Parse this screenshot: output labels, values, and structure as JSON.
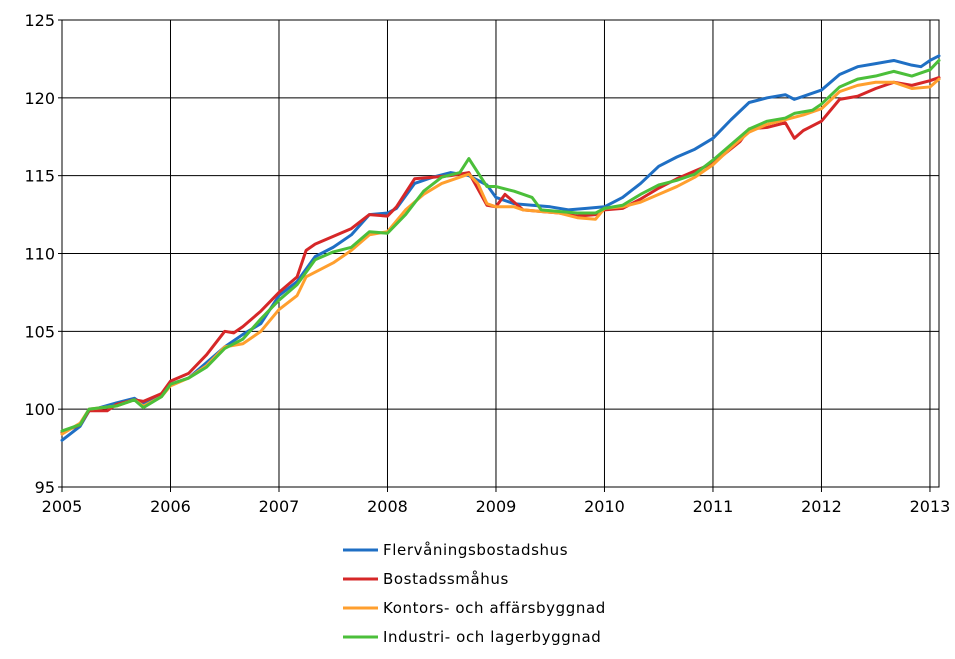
{
  "chart_data": {
    "type": "line",
    "title": "",
    "xlabel": "",
    "ylabel": "",
    "xlim": [
      2005.0,
      2013.0833
    ],
    "ylim": [
      95,
      125
    ],
    "grid": true,
    "legend_position": "bottom",
    "x_ticks": [
      {
        "value": 2005,
        "label": "2005"
      },
      {
        "value": 2006,
        "label": "2006"
      },
      {
        "value": 2007,
        "label": "2007"
      },
      {
        "value": 2008,
        "label": "2008"
      },
      {
        "value": 2009,
        "label": "2009"
      },
      {
        "value": 2010,
        "label": "2010"
      },
      {
        "value": 2011,
        "label": "2011"
      },
      {
        "value": 2012,
        "label": "2012"
      },
      {
        "value": 2013,
        "label": "2013"
      }
    ],
    "y_ticks": [
      {
        "value": 95,
        "label": "95"
      },
      {
        "value": 100,
        "label": "100"
      },
      {
        "value": 105,
        "label": "105"
      },
      {
        "value": 110,
        "label": "110"
      },
      {
        "value": 115,
        "label": "115"
      },
      {
        "value": 120,
        "label": "120"
      },
      {
        "value": 125,
        "label": "125"
      }
    ],
    "series": [
      {
        "name": "Flervåningsbostadshus",
        "color": "#1f6fc4",
        "points": [
          [
            2005.0,
            98.0
          ],
          [
            2005.167,
            98.9
          ],
          [
            2005.25,
            99.9
          ],
          [
            2005.5,
            100.4
          ],
          [
            2005.667,
            100.7
          ],
          [
            2005.75,
            100.3
          ],
          [
            2005.917,
            101.0
          ],
          [
            2006.0,
            101.6
          ],
          [
            2006.167,
            102.0
          ],
          [
            2006.333,
            103.0
          ],
          [
            2006.5,
            104.0
          ],
          [
            2006.667,
            104.8
          ],
          [
            2006.833,
            105.5
          ],
          [
            2007.0,
            107.3
          ],
          [
            2007.167,
            108.2
          ],
          [
            2007.333,
            109.8
          ],
          [
            2007.5,
            110.4
          ],
          [
            2007.667,
            111.2
          ],
          [
            2007.833,
            112.5
          ],
          [
            2008.0,
            112.6
          ],
          [
            2008.083,
            112.9
          ],
          [
            2008.25,
            114.5
          ],
          [
            2008.417,
            114.9
          ],
          [
            2008.583,
            115.2
          ],
          [
            2008.75,
            115.0
          ],
          [
            2008.917,
            114.4
          ],
          [
            2009.0,
            113.6
          ],
          [
            2009.167,
            113.2
          ],
          [
            2009.333,
            113.1
          ],
          [
            2009.5,
            113.0
          ],
          [
            2009.667,
            112.8
          ],
          [
            2009.833,
            112.9
          ],
          [
            2010.0,
            113.0
          ],
          [
            2010.167,
            113.6
          ],
          [
            2010.333,
            114.5
          ],
          [
            2010.5,
            115.6
          ],
          [
            2010.667,
            116.2
          ],
          [
            2010.833,
            116.7
          ],
          [
            2011.0,
            117.4
          ],
          [
            2011.167,
            118.6
          ],
          [
            2011.333,
            119.7
          ],
          [
            2011.5,
            120.0
          ],
          [
            2011.667,
            120.2
          ],
          [
            2011.75,
            119.9
          ],
          [
            2011.833,
            120.1
          ],
          [
            2012.0,
            120.5
          ],
          [
            2012.167,
            121.5
          ],
          [
            2012.333,
            122.0
          ],
          [
            2012.5,
            122.2
          ],
          [
            2012.667,
            122.4
          ],
          [
            2012.833,
            122.1
          ],
          [
            2012.917,
            122.0
          ],
          [
            2013.0,
            122.4
          ],
          [
            2013.0833,
            122.7
          ]
        ]
      },
      {
        "name": "Bostadssmåhus",
        "color": "#d62728",
        "points": [
          [
            2005.0,
            98.5
          ],
          [
            2005.167,
            99.0
          ],
          [
            2005.25,
            99.9
          ],
          [
            2005.417,
            99.9
          ],
          [
            2005.5,
            100.3
          ],
          [
            2005.667,
            100.6
          ],
          [
            2005.75,
            100.5
          ],
          [
            2005.917,
            101.0
          ],
          [
            2006.0,
            101.8
          ],
          [
            2006.167,
            102.3
          ],
          [
            2006.333,
            103.5
          ],
          [
            2006.5,
            105.0
          ],
          [
            2006.583,
            104.9
          ],
          [
            2006.667,
            105.3
          ],
          [
            2006.833,
            106.3
          ],
          [
            2007.0,
            107.5
          ],
          [
            2007.167,
            108.5
          ],
          [
            2007.25,
            110.2
          ],
          [
            2007.333,
            110.6
          ],
          [
            2007.5,
            111.1
          ],
          [
            2007.667,
            111.6
          ],
          [
            2007.833,
            112.5
          ],
          [
            2008.0,
            112.4
          ],
          [
            2008.083,
            113.0
          ],
          [
            2008.25,
            114.8
          ],
          [
            2008.417,
            114.9
          ],
          [
            2008.583,
            115.0
          ],
          [
            2008.75,
            115.2
          ],
          [
            2008.917,
            113.1
          ],
          [
            2009.0,
            113.0
          ],
          [
            2009.083,
            113.8
          ],
          [
            2009.25,
            112.8
          ],
          [
            2009.417,
            112.7
          ],
          [
            2009.583,
            112.6
          ],
          [
            2009.75,
            112.4
          ],
          [
            2009.917,
            112.5
          ],
          [
            2010.0,
            112.8
          ],
          [
            2010.167,
            112.9
          ],
          [
            2010.333,
            113.5
          ],
          [
            2010.5,
            114.2
          ],
          [
            2010.667,
            114.8
          ],
          [
            2010.833,
            115.3
          ],
          [
            2011.0,
            115.8
          ],
          [
            2011.25,
            117.2
          ],
          [
            2011.333,
            118.0
          ],
          [
            2011.5,
            118.1
          ],
          [
            2011.667,
            118.4
          ],
          [
            2011.75,
            117.4
          ],
          [
            2011.833,
            117.9
          ],
          [
            2012.0,
            118.5
          ],
          [
            2012.167,
            119.9
          ],
          [
            2012.333,
            120.1
          ],
          [
            2012.5,
            120.6
          ],
          [
            2012.667,
            121.0
          ],
          [
            2012.833,
            120.8
          ],
          [
            2013.0,
            121.1
          ],
          [
            2013.0833,
            121.3
          ]
        ]
      },
      {
        "name": "Kontors- och affärsbyggnad",
        "color": "#ff9f2e",
        "points": [
          [
            2005.0,
            98.4
          ],
          [
            2005.167,
            99.1
          ],
          [
            2005.25,
            100.0
          ],
          [
            2005.5,
            100.2
          ],
          [
            2005.667,
            100.6
          ],
          [
            2005.75,
            100.2
          ],
          [
            2005.917,
            100.8
          ],
          [
            2006.0,
            101.5
          ],
          [
            2006.167,
            102.0
          ],
          [
            2006.333,
            102.8
          ],
          [
            2006.5,
            104.0
          ],
          [
            2006.667,
            104.2
          ],
          [
            2006.833,
            105.0
          ],
          [
            2007.0,
            106.4
          ],
          [
            2007.167,
            107.3
          ],
          [
            2007.25,
            108.5
          ],
          [
            2007.5,
            109.4
          ],
          [
            2007.667,
            110.2
          ],
          [
            2007.833,
            111.2
          ],
          [
            2008.0,
            111.4
          ],
          [
            2008.167,
            112.8
          ],
          [
            2008.333,
            113.8
          ],
          [
            2008.5,
            114.5
          ],
          [
            2008.667,
            114.9
          ],
          [
            2008.75,
            115.1
          ],
          [
            2008.833,
            114.5
          ],
          [
            2008.917,
            113.2
          ],
          [
            2009.0,
            113.0
          ],
          [
            2009.167,
            113.0
          ],
          [
            2009.25,
            112.8
          ],
          [
            2009.417,
            112.7
          ],
          [
            2009.583,
            112.6
          ],
          [
            2009.75,
            112.3
          ],
          [
            2009.917,
            112.2
          ],
          [
            2010.0,
            112.9
          ],
          [
            2010.167,
            113.0
          ],
          [
            2010.333,
            113.3
          ],
          [
            2010.5,
            113.8
          ],
          [
            2010.667,
            114.3
          ],
          [
            2010.833,
            114.9
          ],
          [
            2011.0,
            115.7
          ],
          [
            2011.167,
            116.8
          ],
          [
            2011.333,
            117.8
          ],
          [
            2011.5,
            118.3
          ],
          [
            2011.667,
            118.6
          ],
          [
            2011.833,
            118.9
          ],
          [
            2012.0,
            119.3
          ],
          [
            2012.167,
            120.4
          ],
          [
            2012.333,
            120.8
          ],
          [
            2012.5,
            121.0
          ],
          [
            2012.667,
            121.0
          ],
          [
            2012.833,
            120.6
          ],
          [
            2013.0,
            120.7
          ],
          [
            2013.0833,
            121.2
          ]
        ]
      },
      {
        "name": "Industri- och lagerbyggnad",
        "color": "#4bbf3a",
        "points": [
          [
            2005.0,
            98.6
          ],
          [
            2005.167,
            99.0
          ],
          [
            2005.25,
            100.0
          ],
          [
            2005.5,
            100.2
          ],
          [
            2005.667,
            100.6
          ],
          [
            2005.75,
            100.1
          ],
          [
            2005.917,
            100.8
          ],
          [
            2006.0,
            101.6
          ],
          [
            2006.167,
            102.0
          ],
          [
            2006.333,
            102.7
          ],
          [
            2006.5,
            103.9
          ],
          [
            2006.667,
            104.5
          ],
          [
            2006.833,
            105.8
          ],
          [
            2007.0,
            107.0
          ],
          [
            2007.167,
            108.0
          ],
          [
            2007.333,
            109.6
          ],
          [
            2007.5,
            110.1
          ],
          [
            2007.667,
            110.4
          ],
          [
            2007.833,
            111.4
          ],
          [
            2008.0,
            111.3
          ],
          [
            2008.167,
            112.5
          ],
          [
            2008.333,
            114.0
          ],
          [
            2008.5,
            114.9
          ],
          [
            2008.667,
            115.2
          ],
          [
            2008.75,
            116.1
          ],
          [
            2008.833,
            115.2
          ],
          [
            2008.917,
            114.3
          ],
          [
            2009.0,
            114.3
          ],
          [
            2009.167,
            114.0
          ],
          [
            2009.333,
            113.6
          ],
          [
            2009.417,
            112.8
          ],
          [
            2009.583,
            112.7
          ],
          [
            2009.75,
            112.6
          ],
          [
            2009.917,
            112.6
          ],
          [
            2010.0,
            112.9
          ],
          [
            2010.167,
            113.1
          ],
          [
            2010.333,
            113.8
          ],
          [
            2010.5,
            114.4
          ],
          [
            2010.667,
            114.7
          ],
          [
            2010.833,
            115.1
          ],
          [
            2011.0,
            116.0
          ],
          [
            2011.167,
            117.0
          ],
          [
            2011.333,
            118.0
          ],
          [
            2011.5,
            118.5
          ],
          [
            2011.667,
            118.7
          ],
          [
            2011.75,
            119.0
          ],
          [
            2011.917,
            119.2
          ],
          [
            2012.0,
            119.6
          ],
          [
            2012.167,
            120.7
          ],
          [
            2012.333,
            121.2
          ],
          [
            2012.5,
            121.4
          ],
          [
            2012.667,
            121.7
          ],
          [
            2012.833,
            121.4
          ],
          [
            2013.0,
            121.8
          ],
          [
            2013.0833,
            122.4
          ]
        ]
      }
    ]
  }
}
